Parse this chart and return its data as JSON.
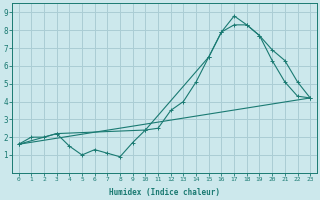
{
  "xlabel": "Humidex (Indice chaleur)",
  "bg_color": "#cce8ec",
  "grid_color": "#aacdd4",
  "line_color": "#1a7a72",
  "xlim": [
    -0.5,
    23.5
  ],
  "ylim": [
    0,
    9.5
  ],
  "xticks": [
    0,
    1,
    2,
    3,
    4,
    5,
    6,
    7,
    8,
    9,
    10,
    11,
    12,
    13,
    14,
    15,
    16,
    17,
    18,
    19,
    20,
    21,
    22,
    23
  ],
  "yticks": [
    1,
    2,
    3,
    4,
    5,
    6,
    7,
    8,
    9
  ],
  "line1_x": [
    0,
    1,
    2,
    3,
    4,
    5,
    6,
    7,
    8,
    9,
    10,
    11,
    12,
    13,
    14,
    15,
    16,
    17,
    18,
    19,
    20,
    21,
    22,
    23
  ],
  "line1_y": [
    1.6,
    2.0,
    2.0,
    2.2,
    1.5,
    1.0,
    1.3,
    1.1,
    0.9,
    1.7,
    2.4,
    2.5,
    3.5,
    4.0,
    5.1,
    6.5,
    7.9,
    8.3,
    8.3,
    7.7,
    6.3,
    5.1,
    4.3,
    4.2
  ],
  "line2_x": [
    0,
    3,
    10,
    15,
    16,
    17,
    18,
    19,
    20,
    21,
    22,
    23
  ],
  "line2_y": [
    1.6,
    2.2,
    2.4,
    6.5,
    7.9,
    8.8,
    8.3,
    7.7,
    6.9,
    6.3,
    5.1,
    4.2
  ],
  "line3_x": [
    0,
    23
  ],
  "line3_y": [
    1.6,
    4.2
  ],
  "xlabel_fontsize": 5.5,
  "tick_fontsize_x": 4.5,
  "tick_fontsize_y": 5.5
}
